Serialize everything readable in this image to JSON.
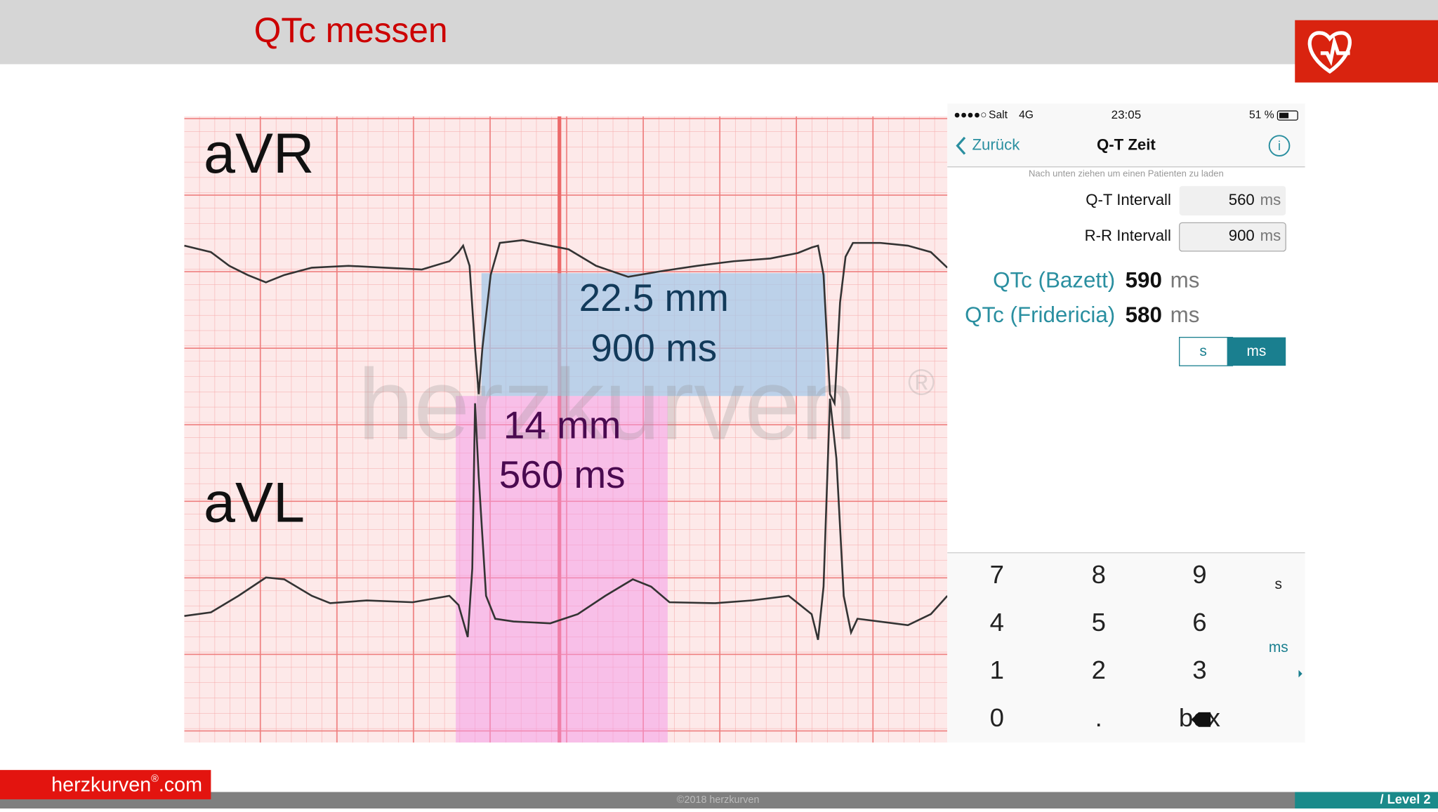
{
  "header": {
    "title": "QTc messen"
  },
  "ecg": {
    "lead_top": "aVR",
    "lead_bottom": "aVL",
    "watermark": "herzkurven",
    "watermark_mark": "®",
    "rr_measure": {
      "length": "22.5 mm",
      "duration": "900 ms"
    },
    "qt_measure": {
      "length": "14 mm",
      "duration": "560 ms"
    }
  },
  "phone": {
    "status": {
      "carrier": "Salt",
      "network": "4G",
      "time": "23:05",
      "battery": "51 %"
    },
    "nav": {
      "back": "Zurück",
      "title": "Q-T Zeit"
    },
    "hint": "Nach unten ziehen um einen Patienten zu laden",
    "fields": [
      {
        "label": "Q-T Intervall",
        "value": "560",
        "unit": "ms"
      },
      {
        "label": "R-R Intervall",
        "value": "900",
        "unit": "ms"
      }
    ],
    "results": [
      {
        "label": "QTc (Bazett)",
        "value": "590",
        "unit": "ms"
      },
      {
        "label": "QTc (Fridericia)",
        "value": "580",
        "unit": "ms"
      }
    ],
    "toggle": [
      "s",
      "ms"
    ],
    "keypad": [
      [
        "7",
        "8",
        "9",
        "s"
      ],
      [
        "4",
        "5",
        "6",
        "ms"
      ],
      [
        "1",
        "2",
        "3"
      ],
      [
        "0",
        ".",
        "box"
      ]
    ]
  },
  "footer": {
    "brand": "herzkurven",
    "brand_mark": "®",
    "brand_suffix": ".com",
    "copyright": "©2018 herzkurven",
    "level": "/ Level 2"
  }
}
